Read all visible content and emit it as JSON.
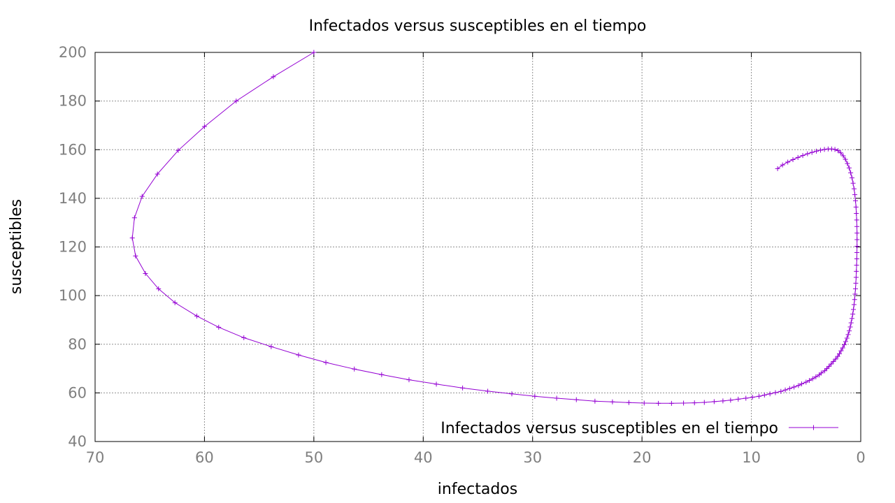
{
  "chart_data": {
    "type": "line",
    "title": "Infectados versus susceptibles en el tiempo",
    "xlabel": "infectados",
    "ylabel": "susceptibles",
    "xlim": [
      70,
      0
    ],
    "ylim": [
      40,
      200
    ],
    "x_reversed": true,
    "xticks": [
      70,
      60,
      50,
      40,
      30,
      20,
      10,
      0
    ],
    "yticks": [
      40,
      60,
      80,
      100,
      120,
      140,
      160,
      180,
      200
    ],
    "grid": true,
    "legend_position": "bottom-right",
    "series": [
      {
        "name": "Infectados versus susceptibles en el tiempo",
        "color": "#9400d3",
        "marker": "plus",
        "points": [
          [
            50.0,
            200.0
          ],
          [
            53.7,
            190.0
          ],
          [
            57.1,
            180.0
          ],
          [
            60.0,
            169.5
          ],
          [
            62.4,
            159.7
          ],
          [
            64.3,
            150.0
          ],
          [
            65.7,
            140.8
          ],
          [
            66.4,
            132.0
          ],
          [
            66.6,
            123.7
          ],
          [
            66.3,
            116.3
          ],
          [
            65.4,
            109.1
          ],
          [
            64.2,
            102.8
          ],
          [
            62.7,
            97.1
          ],
          [
            60.7,
            91.6
          ],
          [
            58.7,
            87.0
          ],
          [
            56.4,
            82.7
          ],
          [
            53.9,
            79.0
          ],
          [
            51.4,
            75.6
          ],
          [
            48.9,
            72.5
          ],
          [
            46.3,
            69.8
          ],
          [
            43.8,
            67.5
          ],
          [
            41.3,
            65.4
          ],
          [
            38.8,
            63.6
          ],
          [
            36.4,
            62.0
          ],
          [
            34.1,
            60.7
          ],
          [
            31.9,
            59.6
          ],
          [
            29.8,
            58.6
          ],
          [
            27.8,
            57.8
          ],
          [
            26.0,
            57.2
          ],
          [
            24.3,
            56.6
          ],
          [
            22.7,
            56.3
          ],
          [
            21.2,
            56.0
          ],
          [
            19.8,
            55.8
          ],
          [
            18.5,
            55.7
          ],
          [
            17.3,
            55.7
          ],
          [
            16.2,
            55.8
          ],
          [
            15.2,
            55.9
          ],
          [
            14.3,
            56.1
          ],
          [
            13.4,
            56.4
          ],
          [
            12.6,
            56.7
          ],
          [
            11.9,
            57.0
          ],
          [
            11.2,
            57.4
          ],
          [
            10.5,
            57.8
          ],
          [
            9.9,
            58.2
          ],
          [
            9.3,
            58.6
          ],
          [
            8.8,
            59.1
          ],
          [
            8.3,
            59.6
          ],
          [
            7.8,
            60.1
          ],
          [
            7.3,
            60.6
          ],
          [
            6.9,
            61.2
          ],
          [
            6.5,
            61.8
          ],
          [
            6.1,
            62.4
          ],
          [
            5.7,
            63.0
          ],
          [
            5.4,
            63.7
          ],
          [
            5.0,
            64.4
          ],
          [
            4.7,
            65.1
          ],
          [
            4.4,
            65.8
          ],
          [
            4.1,
            66.6
          ],
          [
            3.8,
            67.4
          ],
          [
            3.6,
            68.2
          ],
          [
            3.3,
            69.1
          ],
          [
            3.1,
            70.0
          ],
          [
            2.9,
            70.9
          ],
          [
            2.7,
            71.9
          ],
          [
            2.5,
            72.9
          ],
          [
            2.3,
            73.9
          ],
          [
            2.1,
            75.0
          ],
          [
            1.95,
            76.1
          ],
          [
            1.8,
            77.3
          ],
          [
            1.65,
            78.5
          ],
          [
            1.5,
            79.8
          ],
          [
            1.38,
            81.1
          ],
          [
            1.26,
            82.5
          ],
          [
            1.15,
            84.0
          ],
          [
            1.05,
            85.5
          ],
          [
            0.96,
            87.1
          ],
          [
            0.88,
            88.8
          ],
          [
            0.8,
            90.6
          ],
          [
            0.73,
            92.4
          ],
          [
            0.67,
            94.3
          ],
          [
            0.61,
            96.3
          ],
          [
            0.56,
            98.4
          ],
          [
            0.52,
            100.6
          ],
          [
            0.48,
            102.8
          ],
          [
            0.45,
            105.1
          ],
          [
            0.42,
            107.5
          ],
          [
            0.4,
            110.0
          ],
          [
            0.38,
            112.5
          ],
          [
            0.36,
            115.1
          ],
          [
            0.35,
            117.7
          ],
          [
            0.34,
            120.3
          ],
          [
            0.34,
            123.0
          ],
          [
            0.34,
            125.7
          ],
          [
            0.35,
            128.4
          ],
          [
            0.37,
            131.1
          ],
          [
            0.4,
            133.8
          ],
          [
            0.43,
            136.4
          ],
          [
            0.48,
            139.0
          ],
          [
            0.54,
            141.5
          ],
          [
            0.61,
            143.9
          ],
          [
            0.7,
            146.2
          ],
          [
            0.8,
            148.4
          ],
          [
            0.92,
            150.5
          ],
          [
            1.06,
            152.5
          ],
          [
            1.22,
            154.3
          ],
          [
            1.4,
            156.0
          ],
          [
            1.6,
            157.5
          ],
          [
            1.83,
            158.7
          ],
          [
            2.08,
            159.6
          ],
          [
            2.36,
            160.1
          ],
          [
            2.66,
            160.3
          ],
          [
            2.98,
            160.3
          ],
          [
            3.32,
            160.1
          ],
          [
            3.68,
            159.8
          ],
          [
            4.06,
            159.4
          ],
          [
            4.46,
            158.9
          ],
          [
            4.87,
            158.3
          ],
          [
            5.3,
            157.6
          ],
          [
            5.74,
            156.8
          ],
          [
            6.2,
            155.9
          ],
          [
            6.67,
            154.9
          ],
          [
            7.15,
            153.7
          ],
          [
            7.6,
            152.2
          ]
        ]
      }
    ]
  }
}
